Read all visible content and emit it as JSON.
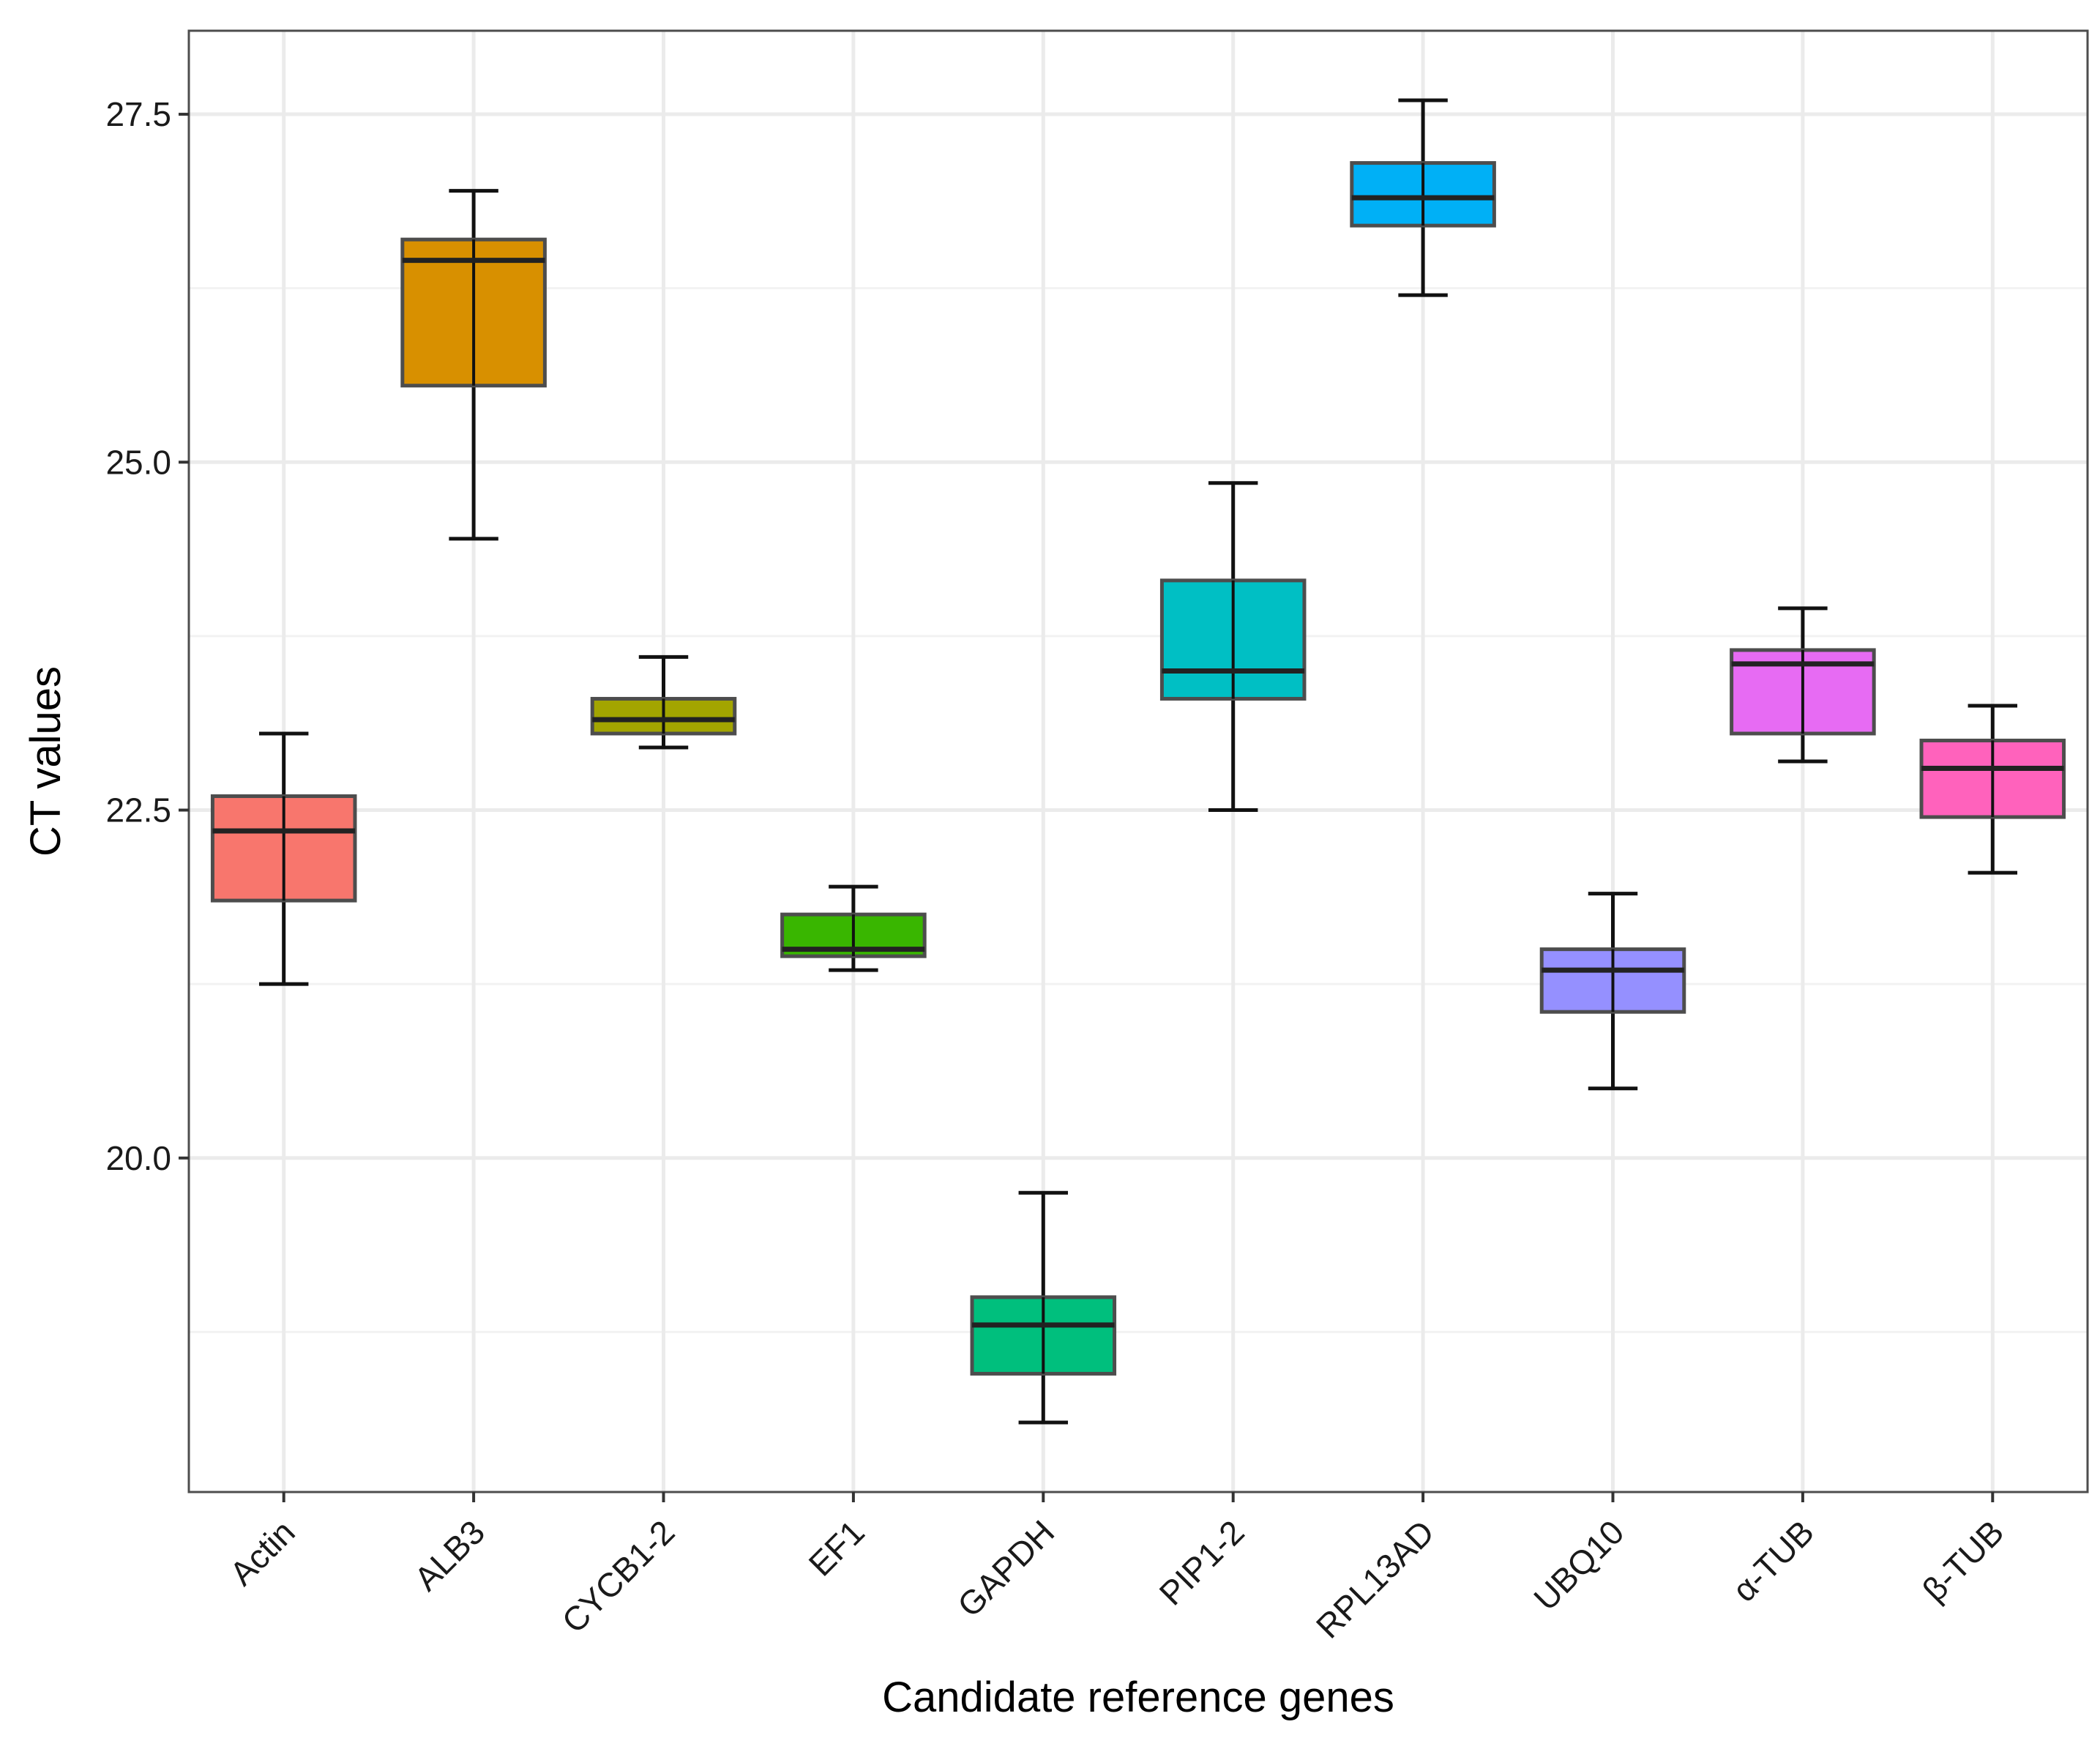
{
  "chart_data": {
    "type": "boxplot",
    "title": "",
    "xlabel": "Candidate reference genes",
    "ylabel": "CT values",
    "ylim": [
      17.6,
      28.1
    ],
    "yticks": [
      20.0,
      22.5,
      25.0,
      27.5
    ],
    "ytick_labels": [
      "20.0",
      "22.5",
      "25.0",
      "27.5"
    ],
    "grid": true,
    "categories": [
      "Actin",
      "ALB3",
      "CYCB1-2",
      "EF1",
      "GAPDH",
      "PIP1-2",
      "RPL13AD",
      "UBQ10",
      "α-TUB",
      "β-TUB"
    ],
    "boxes": [
      {
        "name": "Actin",
        "min": 21.25,
        "q1": 21.85,
        "median": 22.35,
        "q3": 22.6,
        "max": 23.05,
        "color": "#F8766D"
      },
      {
        "name": "ALB3",
        "min": 24.45,
        "q1": 25.55,
        "median": 26.45,
        "q3": 26.6,
        "max": 26.95,
        "color": "#D89000"
      },
      {
        "name": "CYCB1-2",
        "min": 22.95,
        "q1": 23.05,
        "median": 23.15,
        "q3": 23.3,
        "max": 23.6,
        "color": "#A3A500"
      },
      {
        "name": "EF1",
        "min": 21.35,
        "q1": 21.45,
        "median": 21.5,
        "q3": 21.75,
        "max": 21.95,
        "color": "#39B600"
      },
      {
        "name": "GAPDH",
        "min": 18.1,
        "q1": 18.45,
        "median": 18.8,
        "q3": 19.0,
        "max": 19.75,
        "color": "#00BF7D"
      },
      {
        "name": "PIP1-2",
        "min": 22.5,
        "q1": 23.3,
        "median": 23.5,
        "q3": 24.15,
        "max": 24.85,
        "color": "#00BFC4"
      },
      {
        "name": "RPL13AD",
        "min": 26.2,
        "q1": 26.7,
        "median": 26.9,
        "q3": 27.15,
        "max": 27.6,
        "color": "#00B0F6"
      },
      {
        "name": "UBQ10",
        "min": 20.5,
        "q1": 21.05,
        "median": 21.35,
        "q3": 21.5,
        "max": 21.9,
        "color": "#9590FF"
      },
      {
        "name": "α-TUB",
        "min": 22.85,
        "q1": 23.05,
        "median": 23.55,
        "q3": 23.65,
        "max": 23.95,
        "color": "#E76BF3"
      },
      {
        "name": "β-TUB",
        "min": 22.05,
        "q1": 22.45,
        "median": 22.8,
        "q3": 23.0,
        "max": 23.25,
        "color": "#FF62BC"
      }
    ]
  }
}
